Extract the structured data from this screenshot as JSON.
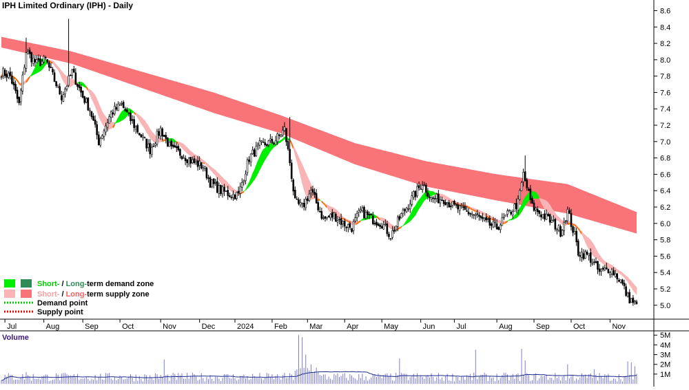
{
  "chart_data": [
    {
      "type": "candlestick",
      "title": "IPH Limited Ordinary (IPH) - Daily",
      "y_ticks": [
        "8.6",
        "8.4",
        "8.2",
        "8.0",
        "7.8",
        "7.6",
        "7.4",
        "7.2",
        "7.0",
        "6.8",
        "6.6",
        "6.4",
        "6.2",
        "6.0",
        "5.8",
        "5.6",
        "5.4",
        "5.2",
        "5.0"
      ],
      "ylim": [
        4.83,
        8.73
      ],
      "x_ticks": [
        {
          "label": "Jul",
          "bar": 2
        },
        {
          "label": "Aug",
          "bar": 24
        },
        {
          "label": "Sep",
          "bar": 46
        },
        {
          "label": "Oct",
          "bar": 67
        },
        {
          "label": "Nov",
          "bar": 90
        },
        {
          "label": "Dec",
          "bar": 112
        },
        {
          "label": "2024",
          "bar": 132
        },
        {
          "label": "Feb",
          "bar": 153
        },
        {
          "label": "Mar",
          "bar": 173
        },
        {
          "label": "Apr",
          "bar": 194
        },
        {
          "label": "May",
          "bar": 215
        },
        {
          "label": "Jun",
          "bar": 237
        },
        {
          "label": "Jul",
          "bar": 256
        },
        {
          "label": "Aug",
          "bar": 280
        },
        {
          "label": "Sep",
          "bar": 301
        },
        {
          "label": "Oct",
          "bar": 322
        },
        {
          "label": "Nov",
          "bar": 344
        }
      ],
      "bar_count": 360,
      "price_anchors": [
        [
          0,
          7.85
        ],
        [
          5,
          7.8
        ],
        [
          10,
          7.45
        ],
        [
          14,
          8.1
        ],
        [
          20,
          7.95
        ],
        [
          25,
          8.0
        ],
        [
          30,
          7.75
        ],
        [
          34,
          7.55
        ],
        [
          40,
          7.85
        ],
        [
          46,
          7.55
        ],
        [
          50,
          7.4
        ],
        [
          55,
          7.0
        ],
        [
          58,
          7.15
        ],
        [
          62,
          7.35
        ],
        [
          68,
          7.45
        ],
        [
          72,
          7.3
        ],
        [
          78,
          7.1
        ],
        [
          84,
          6.9
        ],
        [
          90,
          7.15
        ],
        [
          96,
          6.9
        ],
        [
          102,
          6.85
        ],
        [
          108,
          6.75
        ],
        [
          114,
          6.7
        ],
        [
          118,
          6.5
        ],
        [
          124,
          6.4
        ],
        [
          130,
          6.35
        ],
        [
          134,
          6.35
        ],
        [
          140,
          6.8
        ],
        [
          146,
          6.95
        ],
        [
          154,
          7.0
        ],
        [
          160,
          7.15
        ],
        [
          163,
          6.75
        ],
        [
          166,
          6.25
        ],
        [
          170,
          6.2
        ],
        [
          175,
          6.4
        ],
        [
          182,
          6.05
        ],
        [
          188,
          6.1
        ],
        [
          193,
          6.0
        ],
        [
          198,
          5.95
        ],
        [
          203,
          6.15
        ],
        [
          210,
          6.05
        ],
        [
          215,
          6.0
        ],
        [
          220,
          5.85
        ],
        [
          226,
          6.1
        ],
        [
          232,
          6.3
        ],
        [
          238,
          6.5
        ],
        [
          243,
          6.3
        ],
        [
          250,
          6.3
        ],
        [
          256,
          6.2
        ],
        [
          262,
          6.15
        ],
        [
          268,
          6.1
        ],
        [
          274,
          6.0
        ],
        [
          280,
          5.95
        ],
        [
          286,
          6.1
        ],
        [
          292,
          6.25
        ],
        [
          295,
          6.6
        ],
        [
          300,
          6.2
        ],
        [
          306,
          6.1
        ],
        [
          312,
          6.0
        ],
        [
          316,
          5.9
        ],
        [
          320,
          6.15
        ],
        [
          324,
          5.85
        ],
        [
          326,
          5.65
        ],
        [
          332,
          5.6
        ],
        [
          338,
          5.4
        ],
        [
          344,
          5.45
        ],
        [
          350,
          5.3
        ],
        [
          354,
          5.1
        ],
        [
          358,
          5.02
        ],
        [
          359,
          5.0
        ]
      ],
      "spikes": [
        [
          14,
          8.27
        ],
        [
          38,
          8.5
        ],
        [
          296,
          6.83
        ],
        [
          163,
          7.3
        ]
      ],
      "series": [
        {
          "name": "Long-term supply zone",
          "color": "#f87479",
          "upper": [
            [
              0,
              8.28
            ],
            [
              40,
              8.1
            ],
            [
              80,
              7.85
            ],
            [
              120,
              7.6
            ],
            [
              158,
              7.32
            ],
            [
              200,
              6.98
            ],
            [
              240,
              6.76
            ],
            [
              280,
              6.6
            ],
            [
              320,
              6.48
            ],
            [
              360,
              6.13
            ]
          ],
          "lower": [
            [
              0,
              8.15
            ],
            [
              40,
              7.95
            ],
            [
              80,
              7.65
            ],
            [
              120,
              7.35
            ],
            [
              158,
              7.1
            ],
            [
              200,
              6.72
            ],
            [
              240,
              6.45
            ],
            [
              280,
              6.28
            ],
            [
              320,
              6.12
            ],
            [
              360,
              5.87
            ]
          ]
        },
        {
          "name": "Short-term supply zone",
          "color": "#f9b5b5"
        },
        {
          "name": "Short-term demand zone",
          "color": "#00ee00"
        },
        {
          "name": "Long-term demand zone",
          "color": "#2e8b57"
        }
      ],
      "volume": {
        "label": "Volume",
        "y_ticks": [
          "5M",
          "4M",
          "3M",
          "2M",
          "1M"
        ],
        "ylim": [
          0,
          5.3
        ],
        "spikes": [
          [
            14,
            1.2
          ],
          [
            92,
            2.5
          ],
          [
            168,
            5.0
          ],
          [
            170,
            4.8
          ],
          [
            172,
            3.0
          ],
          [
            175,
            2.0
          ],
          [
            225,
            2.6
          ],
          [
            268,
            3.5
          ],
          [
            294,
            3.6
          ],
          [
            296,
            2.4
          ],
          [
            320,
            2.0
          ],
          [
            335,
            1.5
          ],
          [
            354,
            2.3
          ],
          [
            356,
            2.2
          ],
          [
            358,
            1.8
          ]
        ]
      },
      "legend_position": "bottom-left",
      "grid": false
    }
  ],
  "legend": {
    "row1_short": "Short-",
    "row1_sep": " / ",
    "row1_long": "Long-",
    "row1_rest": "term demand zone",
    "row2_short": "Short-",
    "row2_sep": " / ",
    "row2_long": "Long-",
    "row2_rest": "term supply zone",
    "row3": "Demand point",
    "row4": "Supply point"
  },
  "colors": {
    "candle": "#000000",
    "short_supply": "#f9b5b5",
    "long_supply": "#f87479",
    "short_demand": "#00ee00",
    "long_demand": "#2e8b57",
    "supply_point": "#ee0000",
    "demand_point": "#00cc00",
    "volume_bar": "#7a7ad8",
    "volume_avg": "#1c2a8a",
    "volume_label": "#3a1a7a"
  }
}
